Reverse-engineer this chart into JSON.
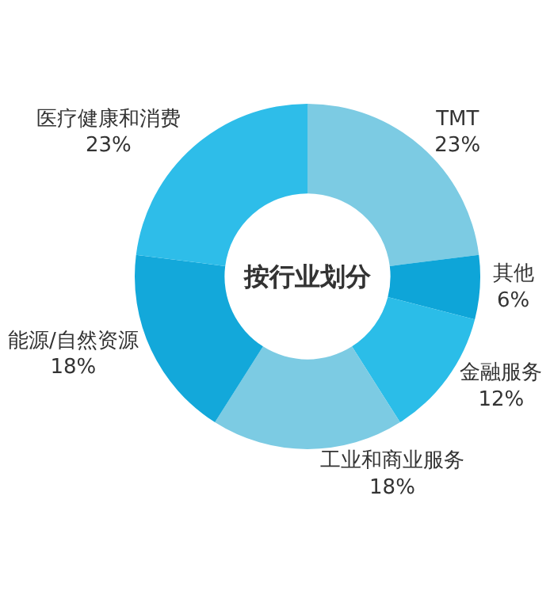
{
  "chart_data": {
    "type": "donut",
    "title": "按行业划分",
    "categories": [
      "TMT",
      "其他",
      "金融服务",
      "工业和商业服务",
      "能源/自然资源",
      "医疗健康和消费"
    ],
    "values": [
      23,
      6,
      12,
      18,
      18,
      23
    ],
    "value_labels": [
      "23%",
      "6%",
      "12%",
      "18%",
      "18%",
      "23%"
    ],
    "colors": [
      "#7ccbe3",
      "#0ea5d8",
      "#2bbde8",
      "#7ccbe3",
      "#13a8da",
      "#2ebde9"
    ]
  }
}
